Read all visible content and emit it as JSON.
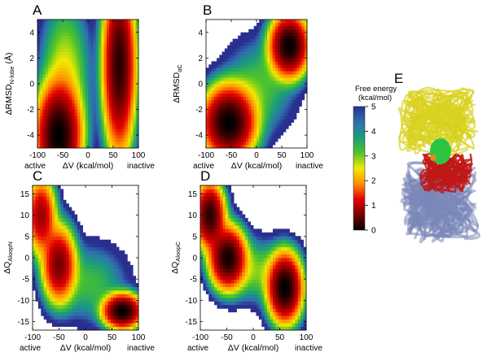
{
  "chart_data": [
    {
      "type": "heatmap",
      "panel_label": "A",
      "ylabel_main": "ΔRMSD",
      "ylabel_sub": "N-lobe",
      "ylabel_unit": " (Å)",
      "xlabel": "ΔV (kcal/mol)",
      "x_left_label": "active",
      "x_right_label": "inactive",
      "xlim": [
        -100,
        100
      ],
      "ylim": [
        -5,
        5
      ],
      "xticks": [
        "-100",
        "-50",
        "0",
        "50",
        "100"
      ],
      "yticks": [
        "4",
        "2",
        "0",
        "-2",
        "-4"
      ],
      "basins": [
        {
          "x": -58,
          "y": -4.0,
          "sx": 22,
          "sy": 2.0,
          "depth": 5.0
        },
        {
          "x": -45,
          "y": 1.0,
          "sx": 26,
          "sy": 3.0,
          "depth": 2.4
        },
        {
          "x": 62,
          "y": 1.5,
          "sx": 16,
          "sy": 3.4,
          "depth": 4.8
        }
      ]
    },
    {
      "type": "heatmap",
      "panel_label": "B",
      "ylabel_main": "ΔRMSD",
      "ylabel_sub": "αC",
      "ylabel_unit": "",
      "xlabel": "ΔV (kcal/mol)",
      "x_left_label": "active",
      "x_right_label": "inactive",
      "xlim": [
        -100,
        100
      ],
      "ylim": [
        -5,
        5
      ],
      "xticks": [
        "-100",
        "-50",
        "0",
        "50",
        "100"
      ],
      "yticks": [
        "4",
        "2",
        "0",
        "-2",
        "-4"
      ],
      "basins": [
        {
          "x": -55,
          "y": -3.0,
          "sx": 26,
          "sy": 1.4,
          "depth": 5.0
        },
        {
          "x": 65,
          "y": 3.0,
          "sx": 19,
          "sy": 1.2,
          "depth": 5.0
        },
        {
          "x": 5,
          "y": -0.2,
          "sx": 38,
          "sy": 2.0,
          "depth": 1.8
        }
      ]
    },
    {
      "type": "heatmap",
      "panel_label": "C",
      "ylabel_main": "ΔQ",
      "ylabel_sub": "AloopN",
      "ylabel_unit": "",
      "xlabel": "ΔV (kcal/mol)",
      "x_left_label": "active",
      "x_right_label": "inactive",
      "xlim": [
        -100,
        100
      ],
      "ylim": [
        -17,
        17
      ],
      "xticks": [
        "-100",
        "-50",
        "0",
        "50",
        "100"
      ],
      "yticks": [
        "15",
        "10",
        "5",
        "0",
        "-5",
        "-10",
        "-15"
      ],
      "basins": [
        {
          "x": -84,
          "y": 10,
          "sx": 14,
          "sy": 4.5,
          "depth": 4.2
        },
        {
          "x": -50,
          "y": -1.5,
          "sx": 16,
          "sy": 4.5,
          "depth": 4.4
        },
        {
          "x": 70,
          "y": -12.5,
          "sx": 18,
          "sy": 2.0,
          "depth": 5.0
        },
        {
          "x": 10,
          "y": -6,
          "sx": 38,
          "sy": 5.0,
          "depth": 1.7
        }
      ]
    },
    {
      "type": "heatmap",
      "panel_label": "D",
      "ylabel_main": "ΔQ",
      "ylabel_sub": "AloopC",
      "ylabel_unit": "",
      "xlabel": "ΔV (kcal/mol)",
      "x_left_label": "active",
      "x_right_label": "inactive",
      "xlim": [
        -100,
        100
      ],
      "ylim": [
        -17,
        17
      ],
      "xticks": [
        "-100",
        "-50",
        "0",
        "50",
        "100"
      ],
      "yticks": [
        "15",
        "10",
        "5",
        "0",
        "-5",
        "-10",
        "-15"
      ],
      "basins": [
        {
          "x": -82,
          "y": 10,
          "sx": 14,
          "sy": 3.8,
          "depth": 4.8
        },
        {
          "x": -48,
          "y": 0,
          "sx": 17,
          "sy": 3.6,
          "depth": 4.9
        },
        {
          "x": 60,
          "y": -7,
          "sx": 16,
          "sy": 4.0,
          "depth": 5.0
        },
        {
          "x": 5,
          "y": -3,
          "sx": 32,
          "sy": 4.0,
          "depth": 2.0
        }
      ]
    }
  ],
  "colorbar": {
    "title_line1": "Free energy",
    "title_line2": "(kcal/mol)",
    "ticks": [
      "5",
      "4",
      "3",
      "2",
      "1",
      "0"
    ],
    "range": [
      0,
      5
    ],
    "colors": [
      "#000000",
      "#7a0000",
      "#e60000",
      "#ff9000",
      "#f2ea00",
      "#4fc42a",
      "#1a9e7a",
      "#2f6fb0",
      "#2a2f8f"
    ]
  },
  "structure_panel": {
    "label": "E",
    "colors": {
      "yellow": "#d9d21e",
      "red": "#c01818",
      "blue": "#7a86b8",
      "green": "#2ec440",
      "orange": "#e08a1e"
    }
  }
}
